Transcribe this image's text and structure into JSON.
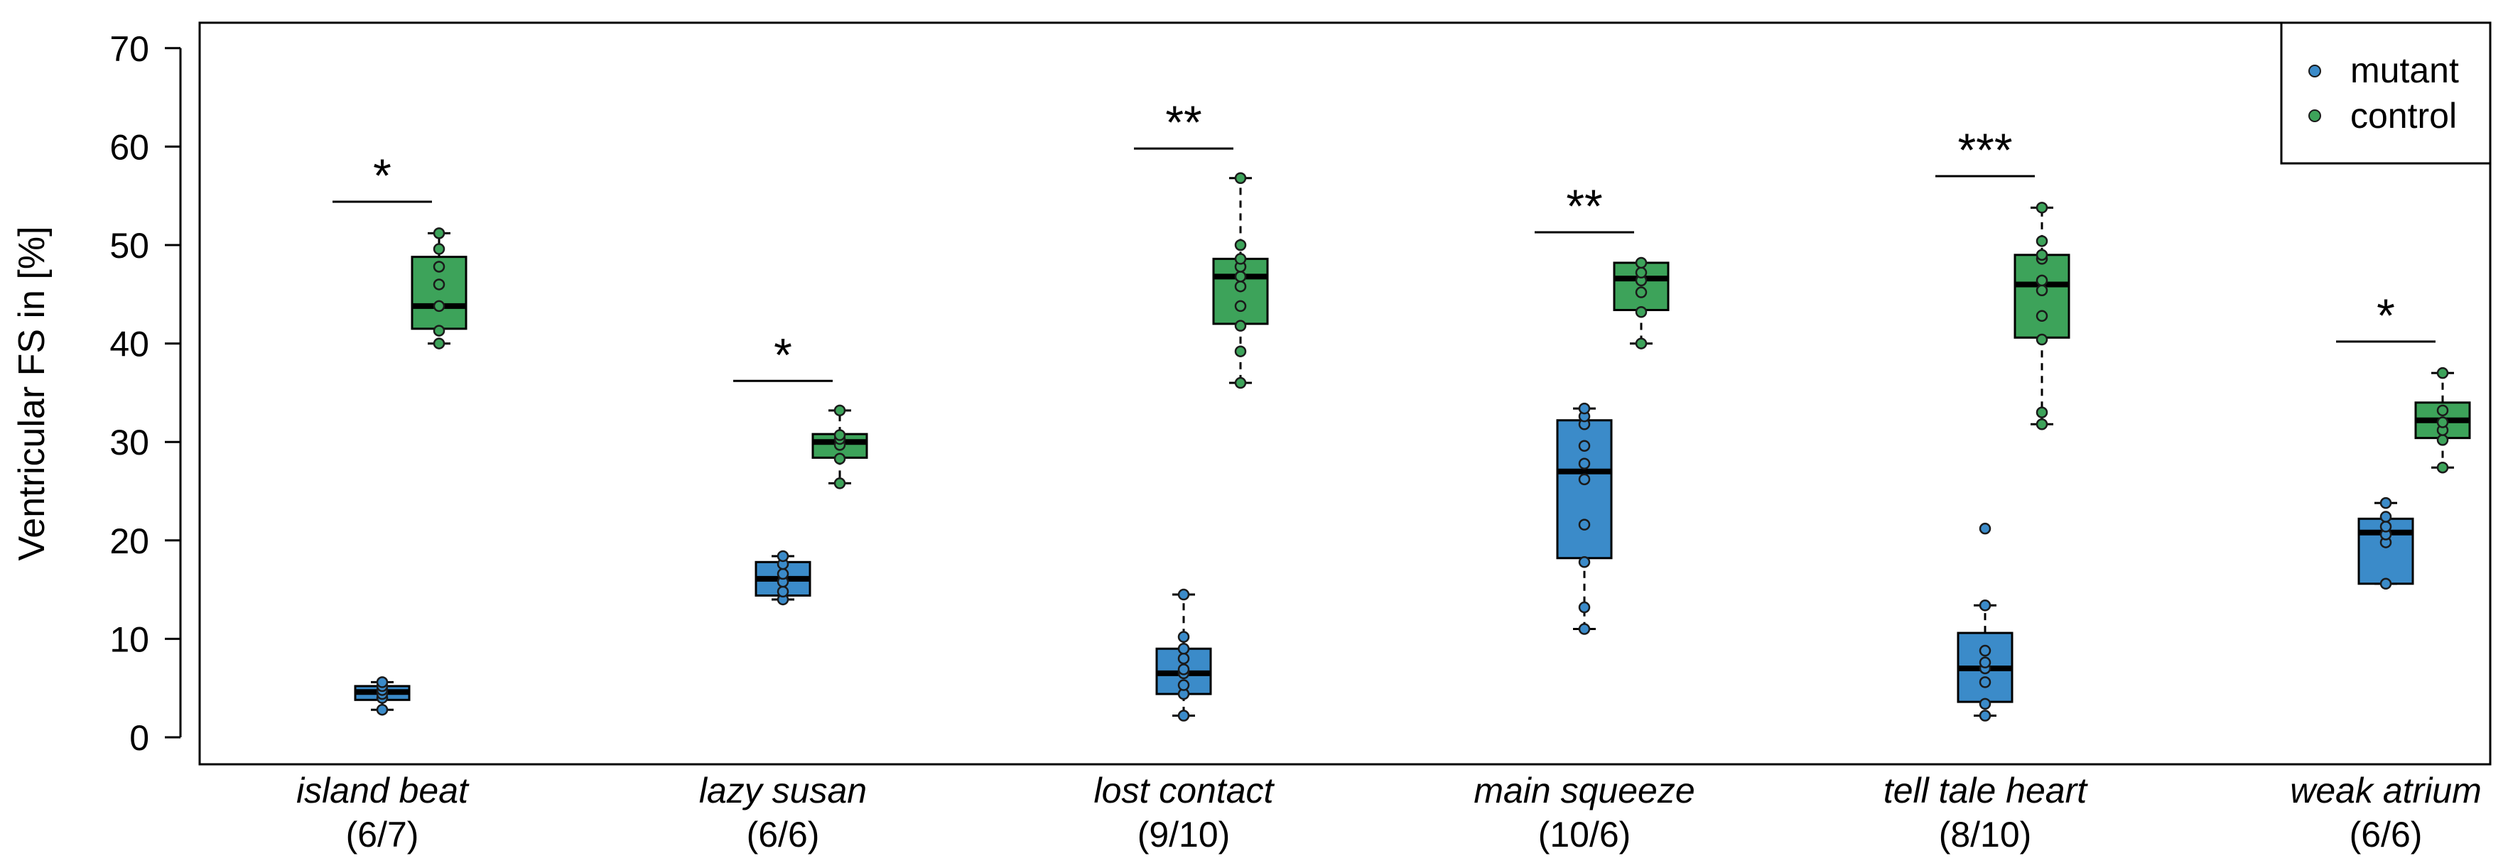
{
  "chart_data": {
    "type": "boxplot",
    "ylabel": "Ventricular FS in [%]",
    "ylim": [
      -2,
      72
    ],
    "yticks": [
      0,
      10,
      20,
      30,
      40,
      50,
      60,
      70
    ],
    "ytick_labels": [
      "0",
      "10",
      "20",
      "30",
      "40",
      "50",
      "60",
      "70"
    ],
    "legend": {
      "position": "top-right",
      "items": [
        {
          "label": "mutant",
          "color": "#3B8BC9"
        },
        {
          "label": "control",
          "color": "#3DA35A"
        }
      ]
    },
    "colors": {
      "mutant": "#3B8BC9",
      "control": "#3DA35A",
      "median": "#000000"
    },
    "groups": [
      {
        "name": "island beat",
        "counts": "(6/7)",
        "significance": "*",
        "sig_y": 54.4,
        "mutant": {
          "q1": 3.8,
          "median": 4.6,
          "q3": 5.2,
          "whisker_low": 2.8,
          "whisker_high": 5.6,
          "points": [
            2.8,
            4.0,
            4.4,
            4.8,
            5.2,
            5.6
          ]
        },
        "control": {
          "q1": 41.5,
          "median": 43.8,
          "q3": 48.8,
          "whisker_low": 40.0,
          "whisker_high": 51.2,
          "points": [
            40.0,
            41.3,
            43.8,
            46.0,
            47.8,
            49.6,
            51.2
          ]
        }
      },
      {
        "name": "lazy susan",
        "counts": "(6/6)",
        "significance": "*",
        "sig_y": 36.2,
        "mutant": {
          "q1": 14.4,
          "median": 16.1,
          "q3": 17.8,
          "whisker_low": 14.0,
          "whisker_high": 18.4,
          "points": [
            14.0,
            14.8,
            15.8,
            16.6,
            17.6,
            18.4
          ]
        },
        "control": {
          "q1": 28.4,
          "median": 30.0,
          "q3": 30.8,
          "whisker_low": 25.8,
          "whisker_high": 33.2,
          "points": [
            25.8,
            28.3,
            29.7,
            30.3,
            30.7,
            33.2
          ]
        }
      },
      {
        "name": "lost contact",
        "counts": "(9/10)",
        "significance": "**",
        "sig_y": 59.8,
        "mutant": {
          "q1": 4.4,
          "median": 6.5,
          "q3": 9.0,
          "whisker_low": 2.2,
          "whisker_high": 14.5,
          "points": [
            2.2,
            4.4,
            5.3,
            6.5,
            6.9,
            8.0,
            9.0,
            10.2,
            14.5
          ]
        },
        "control": {
          "q1": 42.0,
          "median": 46.8,
          "q3": 48.6,
          "whisker_low": 36.0,
          "whisker_high": 56.8,
          "points": [
            36.0,
            39.2,
            41.8,
            43.8,
            45.8,
            46.8,
            47.8,
            48.6,
            50.0,
            56.8
          ]
        }
      },
      {
        "name": "main squeeze",
        "counts": "(10/6)",
        "significance": "**",
        "sig_y": 51.3,
        "mutant": {
          "q1": 18.2,
          "median": 27.0,
          "q3": 32.2,
          "whisker_low": 11.0,
          "whisker_high": 33.4,
          "points": [
            11.0,
            13.2,
            17.8,
            21.6,
            26.2,
            27.8,
            29.6,
            31.8,
            32.6,
            33.4
          ]
        },
        "control": {
          "q1": 43.4,
          "median": 46.6,
          "q3": 48.2,
          "whisker_low": 40.0,
          "whisker_high": 48.2,
          "points": [
            40.0,
            43.2,
            45.2,
            46.4,
            47.2,
            48.2
          ]
        }
      },
      {
        "name": "tell tale heart",
        "counts": "(8/10)",
        "significance": "***",
        "sig_y": 57.0,
        "mutant": {
          "q1": 3.6,
          "median": 7.0,
          "q3": 10.6,
          "whisker_low": 2.2,
          "whisker_high": 13.4,
          "points": [
            2.2,
            3.4,
            5.6,
            7.0,
            7.6,
            8.8,
            13.4,
            21.2
          ]
        },
        "control": {
          "q1": 40.6,
          "median": 46.0,
          "q3": 49.0,
          "whisker_low": 31.8,
          "whisker_high": 53.8,
          "points": [
            31.8,
            33.0,
            40.4,
            42.8,
            45.4,
            46.4,
            48.6,
            49.0,
            50.4,
            53.8
          ]
        }
      },
      {
        "name": "weak atrium",
        "counts": "(6/6)",
        "significance": "*",
        "sig_y": 40.2,
        "mutant": {
          "q1": 15.6,
          "median": 20.8,
          "q3": 22.2,
          "whisker_low": 15.6,
          "whisker_high": 23.8,
          "points": [
            15.6,
            19.8,
            20.6,
            21.4,
            22.4,
            23.8
          ]
        },
        "control": {
          "q1": 30.4,
          "median": 32.2,
          "q3": 34.0,
          "whisker_low": 27.4,
          "whisker_high": 37.0,
          "points": [
            27.4,
            30.2,
            31.2,
            32.0,
            33.2,
            37.0
          ]
        }
      }
    ]
  }
}
